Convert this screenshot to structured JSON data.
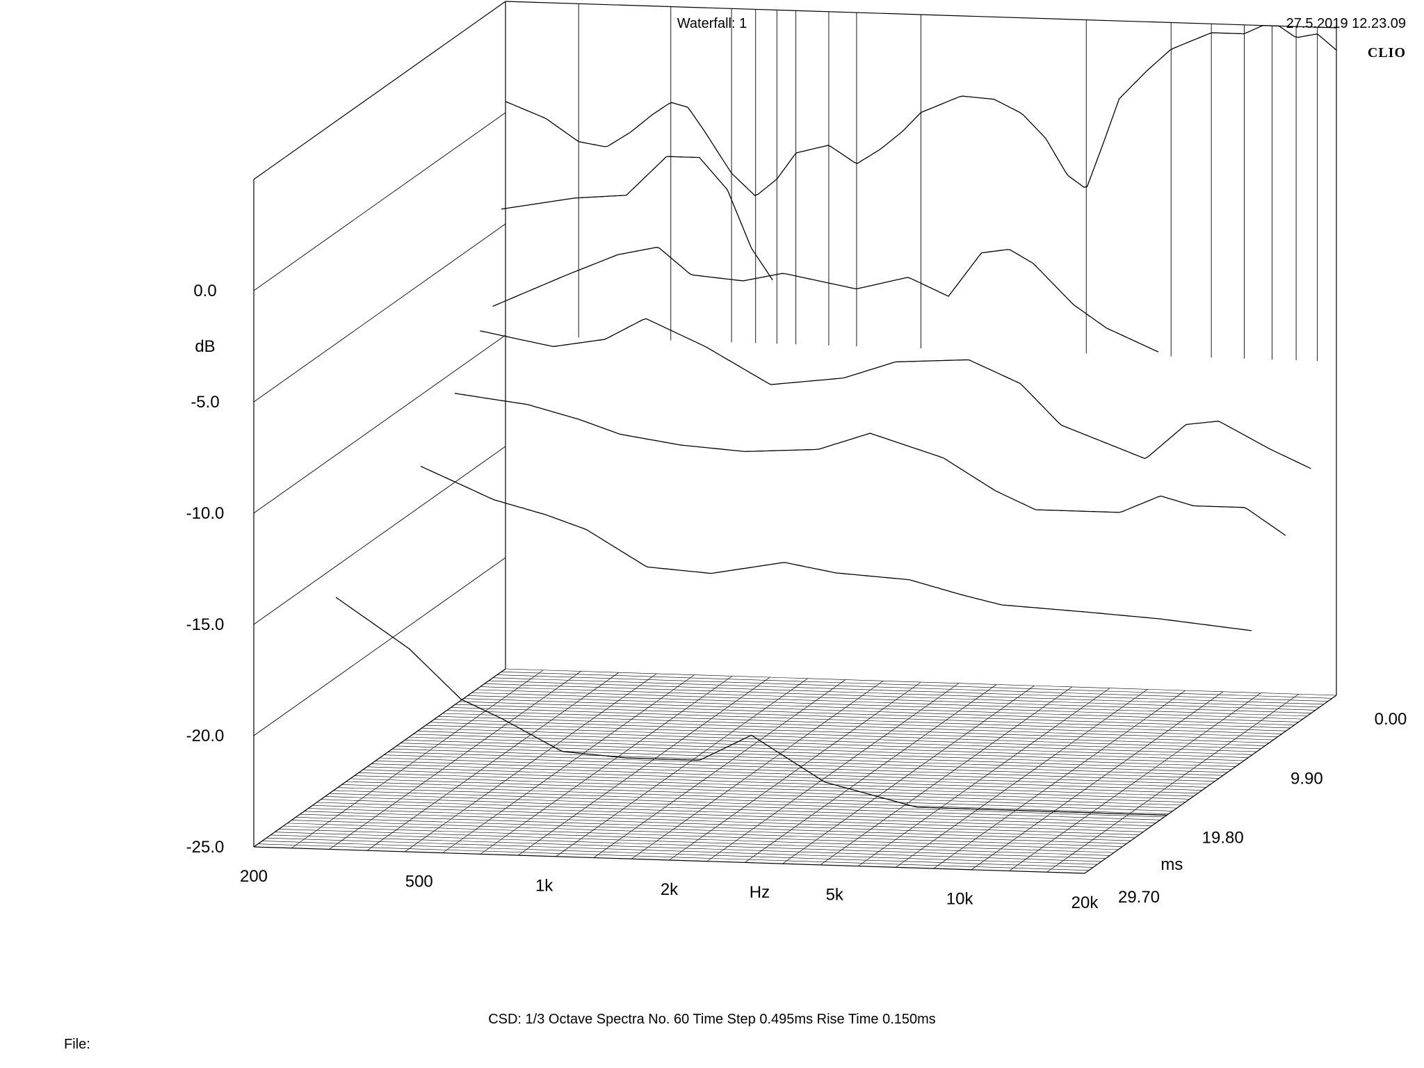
{
  "header": {
    "title": "Waterfall: 1",
    "timestamp": "27.5.2019 12.23.09",
    "brand": "CLIO"
  },
  "footer": {
    "settings": "CSD:   1/3 Octave   Spectra No. 60   Time Step 0.495ms   Rise Time 0.150ms",
    "file_label": "File:"
  },
  "chart_data": {
    "type": "waterfall",
    "title": "Waterfall: 1",
    "x_axis": {
      "label": "Hz",
      "scale": "log",
      "range": [
        200,
        20000
      ],
      "ticks": [
        200,
        500,
        1000,
        2000,
        5000,
        10000,
        20000
      ],
      "tick_labels": [
        "200",
        "500",
        "1k",
        "2k",
        "5k",
        "10k",
        "20k"
      ]
    },
    "y_axis": {
      "label": "dB",
      "range": [
        -25,
        0
      ],
      "ticks": [
        0,
        -5,
        -10,
        -15,
        -20,
        -25
      ],
      "tick_labels": [
        "0.0",
        "-5.0",
        "-10.0",
        "-15.0",
        "-20.0",
        "-25.0"
      ]
    },
    "z_axis": {
      "label": "ms",
      "range": [
        0,
        29.7
      ],
      "ticks": [
        0,
        9.9,
        19.8,
        29.7
      ],
      "tick_labels": [
        "0.00",
        "9.90",
        "19.80",
        "29.70"
      ]
    },
    "settings": {
      "smoothing": "1/3 Octave",
      "spectra_count": 60,
      "time_step_ms": 0.495,
      "rise_time_ms": 0.15
    },
    "decay_profiles": [
      {
        "time_ms": 0.0,
        "points": [
          [
            200,
            0.5
          ],
          [
            250,
            -0.2
          ],
          [
            300,
            -1.2
          ],
          [
            350,
            -1.4
          ],
          [
            400,
            -0.7
          ],
          [
            450,
            0.1
          ],
          [
            500,
            0.7
          ],
          [
            550,
            0.5
          ],
          [
            600,
            -0.5
          ],
          [
            700,
            -2.4
          ],
          [
            800,
            -3.4
          ],
          [
            900,
            -2.6
          ],
          [
            1000,
            -1.4
          ],
          [
            1200,
            -1.0
          ],
          [
            1400,
            -1.8
          ],
          [
            1600,
            -1.1
          ],
          [
            1800,
            -0.3
          ],
          [
            2000,
            0.6
          ],
          [
            2500,
            1.4
          ],
          [
            3000,
            1.3
          ],
          [
            3500,
            0.7
          ],
          [
            4000,
            -0.4
          ],
          [
            4500,
            -2.0
          ],
          [
            5000,
            -2.6
          ],
          [
            5500,
            -0.5
          ],
          [
            6000,
            1.5
          ],
          [
            7000,
            2.8
          ],
          [
            8000,
            3.8
          ],
          [
            10000,
            4.6
          ],
          [
            12000,
            4.6
          ],
          [
            14000,
            5.2
          ],
          [
            16000,
            4.5
          ],
          [
            18000,
            4.7
          ],
          [
            20000,
            4.0
          ]
        ]
      },
      {
        "time_ms": 0.5,
        "points": [
          [
            200,
            -4.2
          ],
          [
            300,
            -3.6
          ],
          [
            400,
            -3.4
          ],
          [
            500,
            -1.6
          ],
          [
            600,
            -1.6
          ],
          [
            700,
            -3.0
          ],
          [
            800,
            -5.6
          ],
          [
            900,
            -7.0
          ]
        ]
      },
      {
        "time_ms": 1.5,
        "points": [
          [
            200,
            -8.3
          ],
          [
            300,
            -6.8
          ],
          [
            400,
            -5.8
          ],
          [
            500,
            -5.4
          ],
          [
            600,
            -6.6
          ],
          [
            800,
            -6.8
          ],
          [
            1000,
            -6.4
          ],
          [
            1500,
            -7.0
          ],
          [
            2000,
            -6.4
          ],
          [
            2500,
            -7.2
          ],
          [
            3000,
            -5.2
          ],
          [
            3500,
            -5.0
          ],
          [
            4000,
            -5.6
          ],
          [
            5000,
            -7.4
          ],
          [
            6000,
            -8.4
          ],
          [
            8000,
            -9.4
          ]
        ]
      },
      {
        "time_ms": 3.0,
        "points": [
          [
            200,
            -9.0
          ],
          [
            300,
            -9.6
          ],
          [
            400,
            -9.2
          ],
          [
            500,
            -8.2
          ],
          [
            700,
            -9.4
          ],
          [
            1000,
            -11.0
          ],
          [
            1500,
            -10.6
          ],
          [
            2000,
            -9.8
          ],
          [
            3000,
            -9.6
          ],
          [
            4000,
            -10.6
          ],
          [
            5000,
            -12.4
          ],
          [
            8000,
            -13.8
          ],
          [
            10000,
            -12.2
          ],
          [
            12000,
            -12.0
          ],
          [
            16000,
            -13.2
          ],
          [
            20000,
            -14.0
          ]
        ]
      },
      {
        "time_ms": 6.0,
        "points": [
          [
            200,
            -11.0
          ],
          [
            300,
            -11.4
          ],
          [
            400,
            -12.0
          ],
          [
            500,
            -12.6
          ],
          [
            700,
            -13.0
          ],
          [
            1000,
            -13.2
          ],
          [
            1500,
            -13.0
          ],
          [
            2000,
            -12.2
          ],
          [
            3000,
            -13.2
          ],
          [
            4000,
            -14.6
          ],
          [
            5000,
            -15.4
          ],
          [
            8000,
            -15.4
          ],
          [
            10000,
            -14.6
          ],
          [
            12000,
            -15.0
          ],
          [
            16000,
            -15.0
          ],
          [
            20000,
            -16.2
          ]
        ]
      },
      {
        "time_ms": 10.0,
        "points": [
          [
            200,
            -13.2
          ],
          [
            300,
            -14.6
          ],
          [
            400,
            -15.2
          ],
          [
            500,
            -15.8
          ],
          [
            700,
            -17.4
          ],
          [
            1000,
            -17.6
          ],
          [
            1500,
            -17.0
          ],
          [
            2000,
            -17.4
          ],
          [
            3000,
            -17.6
          ],
          [
            4000,
            -18.2
          ],
          [
            5000,
            -18.6
          ],
          [
            8000,
            -18.8
          ],
          [
            12000,
            -19.0
          ],
          [
            20000,
            -19.4
          ]
        ]
      },
      {
        "time_ms": 20.0,
        "points": [
          [
            200,
            -16.4
          ],
          [
            300,
            -18.6
          ],
          [
            400,
            -20.8
          ],
          [
            500,
            -21.6
          ],
          [
            700,
            -23.0
          ],
          [
            1000,
            -23.2
          ],
          [
            1500,
            -23.2
          ],
          [
            2000,
            -22.0
          ],
          [
            3000,
            -24.0
          ],
          [
            5000,
            -25.0
          ],
          [
            20000,
            -25.0
          ]
        ]
      }
    ]
  }
}
